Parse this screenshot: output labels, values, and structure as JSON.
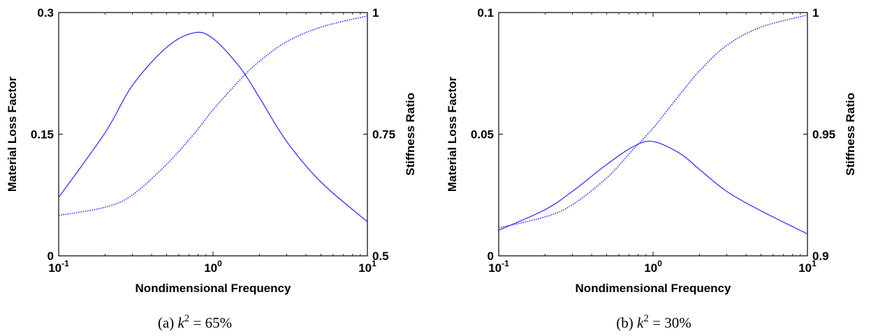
{
  "chart_data": [
    {
      "type": "line",
      "caption": {
        "prefix": "(a)",
        "var": "k",
        "sup": "2",
        "rest": " = 65%"
      },
      "xlabel": "Nondimensional Frequency",
      "ylabel": "Material Loss Factor",
      "y2label": "Stiffness Ratio",
      "xscale": "log",
      "xlim": [
        0.1,
        10
      ],
      "ylim": [
        0,
        0.3
      ],
      "y2lim": [
        0.5,
        1
      ],
      "xticks": [
        {
          "base": "10",
          "exp": "-1"
        },
        {
          "base": "10",
          "exp": "0"
        },
        {
          "base": "10",
          "exp": "1"
        }
      ],
      "yticks": [
        "0",
        "0.15",
        "0.3"
      ],
      "y2ticks": [
        "0.5",
        "0.75",
        "1"
      ],
      "grid": false,
      "line_color": "#3333ff",
      "series": [
        {
          "style": "solid",
          "axis": "left",
          "x": [
            0.1,
            0.2,
            0.3,
            0.5,
            0.75,
            1.0,
            1.5,
            2.0,
            3.0,
            5.0,
            10.0
          ],
          "values": [
            0.072,
            0.152,
            0.21,
            0.257,
            0.275,
            0.268,
            0.232,
            0.195,
            0.141,
            0.091,
            0.042
          ]
        },
        {
          "style": "dotted",
          "axis": "right",
          "x": [
            0.1,
            0.2,
            0.3,
            0.5,
            0.75,
            1.0,
            1.5,
            2.0,
            3.0,
            5.0,
            10.0
          ],
          "values": [
            0.583,
            0.6,
            0.625,
            0.688,
            0.75,
            0.8,
            0.862,
            0.9,
            0.94,
            0.97,
            0.993
          ]
        }
      ]
    },
    {
      "type": "line",
      "caption": {
        "prefix": "(b)",
        "var": "k",
        "sup": "2",
        "rest": " = 30%"
      },
      "xlabel": "Nondimensional Frequency",
      "ylabel": "Material Loss Factor",
      "y2label": "Stiffness Ratio",
      "xscale": "log",
      "xlim": [
        0.1,
        10
      ],
      "ylim": [
        0,
        0.1
      ],
      "y2lim": [
        0.9,
        1
      ],
      "xticks": [
        {
          "base": "10",
          "exp": "-1"
        },
        {
          "base": "10",
          "exp": "0"
        },
        {
          "base": "10",
          "exp": "1"
        }
      ],
      "yticks": [
        "0",
        "0.05",
        "0.1"
      ],
      "y2ticks": [
        "0.9",
        "0.95",
        "1"
      ],
      "grid": false,
      "line_color": "#3333ff",
      "series": [
        {
          "style": "solid",
          "axis": "left",
          "x": [
            0.1,
            0.2,
            0.3,
            0.5,
            0.75,
            1.0,
            1.5,
            2.0,
            3.0,
            5.0,
            10.0
          ],
          "values": [
            0.0105,
            0.019,
            0.0265,
            0.0375,
            0.045,
            0.047,
            0.042,
            0.0355,
            0.0265,
            0.0185,
            0.009
          ]
        },
        {
          "style": "dotted",
          "axis": "right",
          "x": [
            0.1,
            0.2,
            0.3,
            0.5,
            0.75,
            1.0,
            1.5,
            2.0,
            3.0,
            5.0,
            10.0
          ],
          "values": [
            0.9115,
            0.916,
            0.921,
            0.932,
            0.944,
            0.9525,
            0.9665,
            0.976,
            0.9865,
            0.994,
            0.999
          ]
        }
      ]
    }
  ]
}
